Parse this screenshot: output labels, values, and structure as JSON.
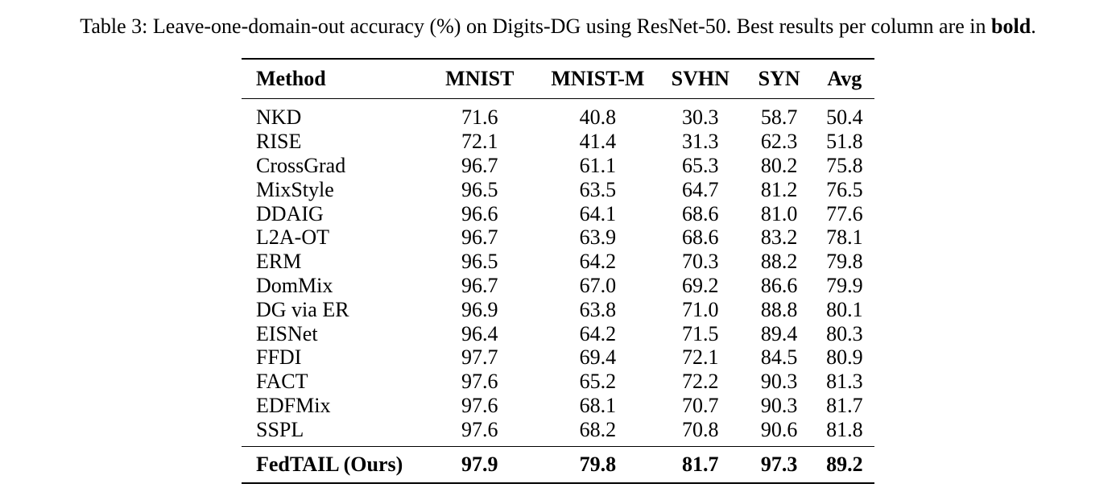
{
  "caption": {
    "prefix": "Table 3: Leave-one-domain-out accuracy (%) on Digits-DG using ResNet-50. Best results per column are in ",
    "bold_word": "bold",
    "suffix": "."
  },
  "table": {
    "headers": [
      "Method",
      "MNIST",
      "MNIST-M",
      "SVHN",
      "SYN",
      "Avg"
    ],
    "rows": [
      {
        "method": "NKD",
        "values": [
          "71.6",
          "40.8",
          "30.3",
          "58.7",
          "50.4"
        ]
      },
      {
        "method": "RISE",
        "values": [
          "72.1",
          "41.4",
          "31.3",
          "62.3",
          "51.8"
        ]
      },
      {
        "method": "CrossGrad",
        "values": [
          "96.7",
          "61.1",
          "65.3",
          "80.2",
          "75.8"
        ]
      },
      {
        "method": "MixStyle",
        "values": [
          "96.5",
          "63.5",
          "64.7",
          "81.2",
          "76.5"
        ]
      },
      {
        "method": "DDAIG",
        "values": [
          "96.6",
          "64.1",
          "68.6",
          "81.0",
          "77.6"
        ]
      },
      {
        "method": "L2A-OT",
        "values": [
          "96.7",
          "63.9",
          "68.6",
          "83.2",
          "78.1"
        ]
      },
      {
        "method": "ERM",
        "values": [
          "96.5",
          "64.2",
          "70.3",
          "88.2",
          "79.8"
        ]
      },
      {
        "method": "DomMix",
        "values": [
          "96.7",
          "67.0",
          "69.2",
          "86.6",
          "79.9"
        ]
      },
      {
        "method": "DG via ER",
        "values": [
          "96.9",
          "63.8",
          "71.0",
          "88.8",
          "80.1"
        ]
      },
      {
        "method": "EISNet",
        "values": [
          "96.4",
          "64.2",
          "71.5",
          "89.4",
          "80.3"
        ]
      },
      {
        "method": "FFDI",
        "values": [
          "97.7",
          "69.4",
          "72.1",
          "84.5",
          "80.9"
        ]
      },
      {
        "method": "FACT",
        "values": [
          "97.6",
          "65.2",
          "72.2",
          "90.3",
          "81.3"
        ]
      },
      {
        "method": "EDFMix",
        "values": [
          "97.6",
          "68.1",
          "70.7",
          "90.3",
          "81.7"
        ]
      },
      {
        "method": "SSPL",
        "values": [
          "97.6",
          "68.2",
          "70.8",
          "90.6",
          "81.8"
        ]
      }
    ],
    "ours": {
      "method": "FedTAIL (Ours)",
      "values": [
        "97.9",
        "79.8",
        "81.7",
        "97.3",
        "89.2"
      ]
    }
  }
}
